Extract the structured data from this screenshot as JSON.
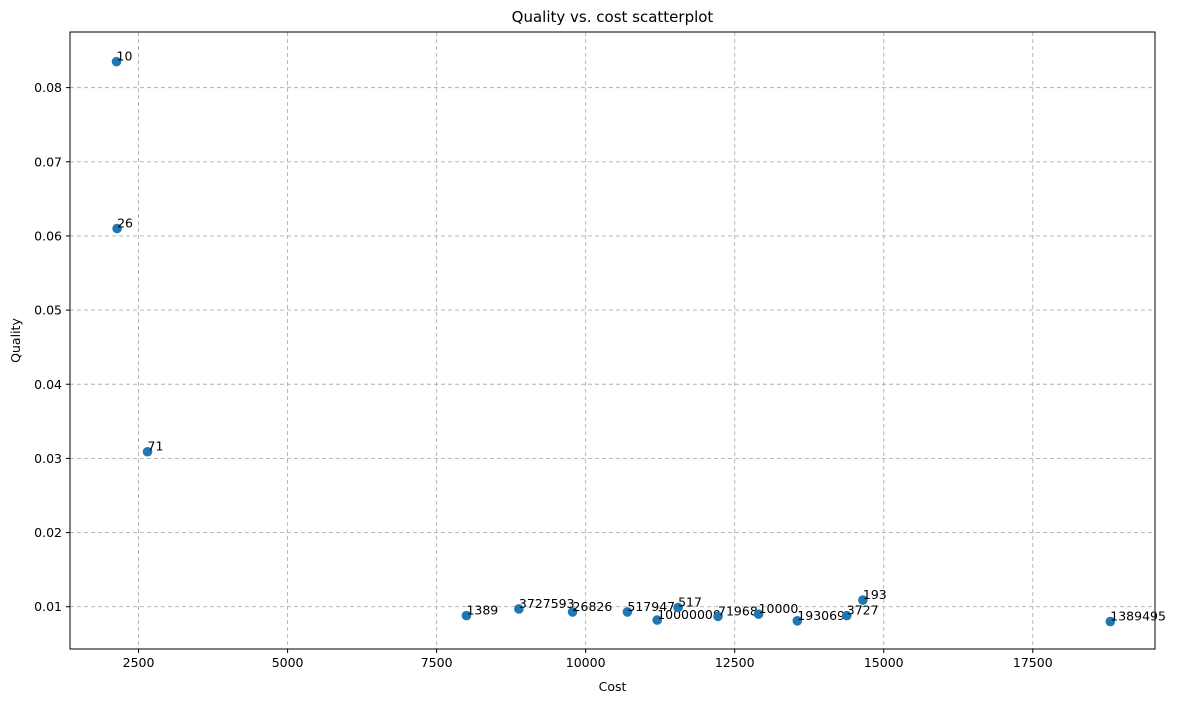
{
  "chart_data": {
    "type": "scatter",
    "title": "Quality vs. cost scatterplot",
    "xlabel": "Cost",
    "ylabel": "Quality",
    "xlim": [
      1350,
      19550
    ],
    "ylim": [
      0.0043,
      0.0875
    ],
    "xticks": [
      2500,
      5000,
      7500,
      10000,
      12500,
      15000,
      17500
    ],
    "xtick_labels": [
      "2500",
      "5000",
      "7500",
      "10000",
      "12500",
      "15000",
      "17500"
    ],
    "yticks": [
      0.01,
      0.02,
      0.03,
      0.04,
      0.05,
      0.06,
      0.07,
      0.08
    ],
    "ytick_labels": [
      "0.01",
      "0.02",
      "0.03",
      "0.04",
      "0.05",
      "0.06",
      "0.07",
      "0.08"
    ],
    "grid": true,
    "point_color": "#1f77b4",
    "points": [
      {
        "x": 2130,
        "y": 0.0835,
        "label": "10"
      },
      {
        "x": 2140,
        "y": 0.061,
        "label": "26"
      },
      {
        "x": 2650,
        "y": 0.0309,
        "label": "71"
      },
      {
        "x": 8000,
        "y": 0.0088,
        "label": "1389"
      },
      {
        "x": 8880,
        "y": 0.0097,
        "label": "3727593"
      },
      {
        "x": 9780,
        "y": 0.0093,
        "label": "26826"
      },
      {
        "x": 10700,
        "y": 0.0093,
        "label": "517947"
      },
      {
        "x": 11200,
        "y": 0.0082,
        "label": "10000000"
      },
      {
        "x": 11550,
        "y": 0.0099,
        "label": "517"
      },
      {
        "x": 12220,
        "y": 0.0087,
        "label": "71968"
      },
      {
        "x": 12900,
        "y": 0.009,
        "label": "10000"
      },
      {
        "x": 13550,
        "y": 0.0081,
        "label": "193069"
      },
      {
        "x": 14380,
        "y": 0.0088,
        "label": "3727"
      },
      {
        "x": 14650,
        "y": 0.0109,
        "label": "193"
      },
      {
        "x": 18800,
        "y": 0.008,
        "label": "1389495"
      }
    ]
  }
}
